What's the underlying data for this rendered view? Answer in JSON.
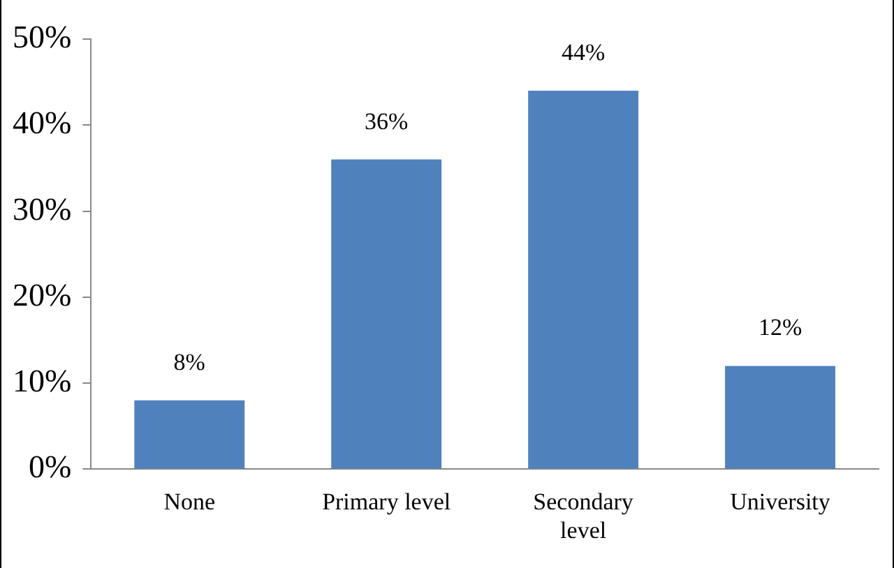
{
  "chart_data": {
    "type": "bar",
    "categories": [
      "None",
      "Primary level",
      "Secondary level",
      "University"
    ],
    "values": [
      8,
      36,
      44,
      12
    ],
    "color": "#4f81bd",
    "value_labels": [
      "8%",
      "36%",
      "44%",
      "12%"
    ],
    "ylim": [
      0,
      50
    ],
    "yticks": [
      {
        "value": 0,
        "label": "0%"
      },
      {
        "value": 10,
        "label": "10%"
      },
      {
        "value": 20,
        "label": "20%"
      },
      {
        "value": 30,
        "label": "30%"
      },
      {
        "value": 40,
        "label": "40%"
      },
      {
        "value": 50,
        "label": "50%"
      }
    ],
    "grid": false,
    "legend": false
  }
}
